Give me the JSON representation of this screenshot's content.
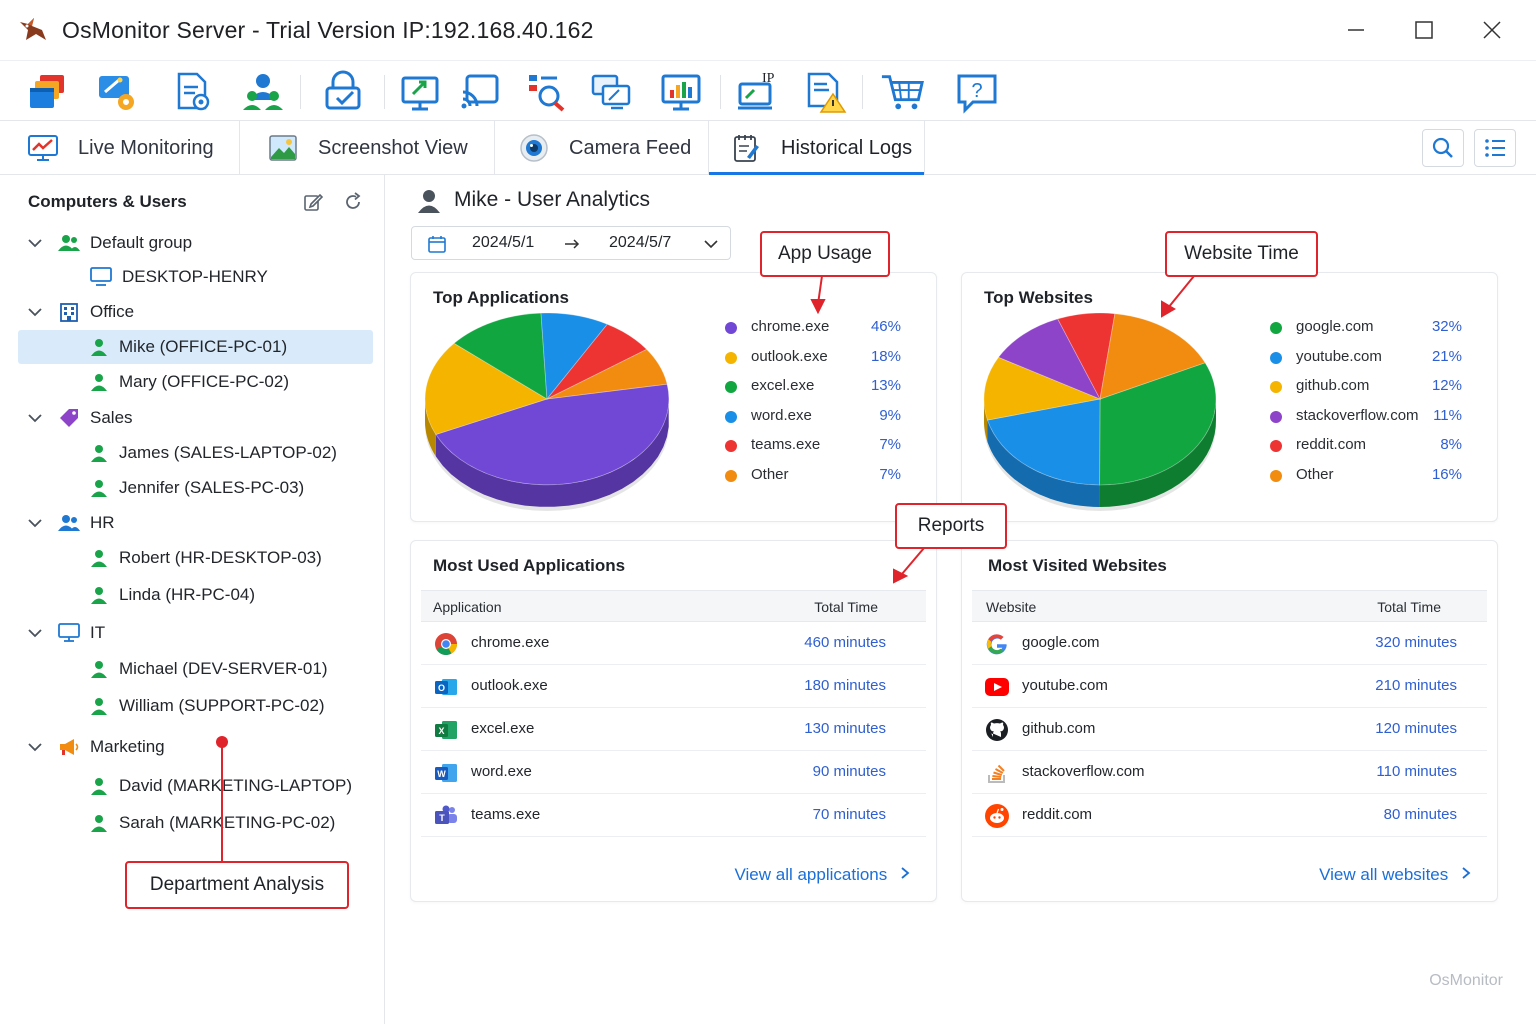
{
  "window": {
    "title": "OsMonitor Server - Trial Version IP:192.168.40.162",
    "controls": [
      "minimize",
      "maximize",
      "close"
    ]
  },
  "toolbar": {
    "tools": [
      {
        "name": "windows-icon"
      },
      {
        "name": "settings-wand-icon"
      },
      {
        "name": "policy-settings-icon"
      },
      {
        "name": "users-icon"
      },
      {
        "name": "lock-check-icon"
      },
      {
        "name": "remote-control-icon"
      },
      {
        "name": "cast-icon"
      },
      {
        "name": "search-list-icon"
      },
      {
        "name": "screens-icon"
      },
      {
        "name": "report-chart-icon"
      },
      {
        "name": "ip-monitor-icon",
        "label": "IP"
      },
      {
        "name": "alert-log-icon"
      },
      {
        "name": "shopping-cart-icon"
      },
      {
        "name": "help-icon",
        "label": "?"
      }
    ]
  },
  "tabs": [
    {
      "label": "Live Monitoring",
      "icon": "monitor-chart-icon"
    },
    {
      "label": "Screenshot View",
      "icon": "image-icon"
    },
    {
      "label": "Camera Feed",
      "icon": "camera-icon"
    },
    {
      "label": "Historical Logs",
      "icon": "log-notepad-icon",
      "active": true
    }
  ],
  "sidebar": {
    "title": "Computers & Users",
    "tree": [
      {
        "label": "Default group",
        "type": "group",
        "icon": "group-icon",
        "expanded": true
      },
      {
        "label": "DESKTOP-HENRY",
        "type": "computer",
        "icon": "desktop-icon"
      },
      {
        "label": "Office",
        "type": "group",
        "icon": "building-icon",
        "expanded": true
      },
      {
        "label": "Mike (OFFICE-PC-01)",
        "type": "user",
        "icon": "user-icon",
        "selected": true
      },
      {
        "label": "Mary (OFFICE-PC-02)",
        "type": "user",
        "icon": "user-icon"
      },
      {
        "label": "Sales",
        "type": "group",
        "icon": "tag-icon",
        "expanded": true
      },
      {
        "label": "James (SALES-LAPTOP-02)",
        "type": "user",
        "icon": "user-icon"
      },
      {
        "label": "Jennifer (SALES-PC-03)",
        "type": "user",
        "icon": "user-icon"
      },
      {
        "label": "HR",
        "type": "group",
        "icon": "group-icon",
        "expanded": true
      },
      {
        "label": "Robert (HR-DESKTOP-03)",
        "type": "user",
        "icon": "user-icon"
      },
      {
        "label": "Linda (HR-PC-04)",
        "type": "user",
        "icon": "user-icon"
      },
      {
        "label": "IT",
        "type": "group",
        "icon": "monitor-icon",
        "expanded": true
      },
      {
        "label": "Michael (DEV-SERVER-01)",
        "type": "user",
        "icon": "user-icon"
      },
      {
        "label": "William (SUPPORT-PC-02)",
        "type": "user",
        "icon": "user-icon"
      },
      {
        "label": "Marketing",
        "type": "group",
        "icon": "megaphone-icon",
        "expanded": true
      },
      {
        "label": "David (MARKETING-LAPTOP)",
        "type": "user",
        "icon": "user-icon"
      },
      {
        "label": "Sarah (MARKETING-PC-02)",
        "type": "user",
        "icon": "user-icon"
      }
    ]
  },
  "main": {
    "title": "Mike - User Analytics",
    "date_range": {
      "start": "2024/5/1",
      "end": "2024/5/7"
    },
    "top_apps": {
      "title": "Top Applications"
    },
    "top_sites": {
      "title": "Top Websites"
    },
    "most_used_apps": {
      "title": "Most Used Applications",
      "columns": [
        "Application",
        "Total Time"
      ],
      "rows": [
        {
          "name": "chrome.exe",
          "time": "460 minutes",
          "icon": "chrome-icon"
        },
        {
          "name": "outlook.exe",
          "time": "180 minutes",
          "icon": "outlook-icon"
        },
        {
          "name": "excel.exe",
          "time": "130 minutes",
          "icon": "excel-icon"
        },
        {
          "name": "word.exe",
          "time": "90 minutes",
          "icon": "word-icon"
        },
        {
          "name": "teams.exe",
          "time": "70 minutes",
          "icon": "teams-icon"
        }
      ],
      "link": "View all applications"
    },
    "most_visited_sites": {
      "title": "Most Visited Websites",
      "columns": [
        "Website",
        "Total Time"
      ],
      "rows": [
        {
          "name": "google.com",
          "time": "320 minutes",
          "icon": "google-icon"
        },
        {
          "name": "youtube.com",
          "time": "210 minutes",
          "icon": "youtube-icon"
        },
        {
          "name": "github.com",
          "time": "120 minutes",
          "icon": "github-icon"
        },
        {
          "name": "stackoverflow.com",
          "time": "110 minutes",
          "icon": "stackoverflow-icon"
        },
        {
          "name": "reddit.com",
          "time": "80 minutes",
          "icon": "reddit-icon"
        }
      ],
      "link": "View all websites"
    }
  },
  "callouts": {
    "app_usage": "App Usage",
    "website_time": "Website Time",
    "reports": "Reports",
    "department_analysis": "Department Analysis"
  },
  "watermark": "OsMonitor",
  "chart_data": [
    {
      "type": "pie",
      "title": "Top Applications",
      "categories": [
        "chrome.exe",
        "outlook.exe",
        "excel.exe",
        "word.exe",
        "teams.exe",
        "Other"
      ],
      "values": [
        46,
        18,
        13,
        9,
        7,
        7
      ],
      "labels": [
        "46%",
        "18%",
        "13%",
        "9%",
        "7%",
        "7%"
      ],
      "colors": [
        "#7147d6",
        "#f4b400",
        "#12a640",
        "#1a8fe8",
        "#ee3333",
        "#f28c10"
      ]
    },
    {
      "type": "pie",
      "title": "Top Websites",
      "categories": [
        "google.com",
        "youtube.com",
        "github.com",
        "stackoverflow.com",
        "reddit.com",
        "Other"
      ],
      "values": [
        32,
        21,
        12,
        11,
        8,
        16
      ],
      "labels": [
        "32%",
        "21%",
        "12%",
        "11%",
        "8%",
        "16%"
      ],
      "colors": [
        "#12a640",
        "#1a8fe8",
        "#f4b400",
        "#8e44c9",
        "#ee3333",
        "#f28c10"
      ]
    }
  ]
}
